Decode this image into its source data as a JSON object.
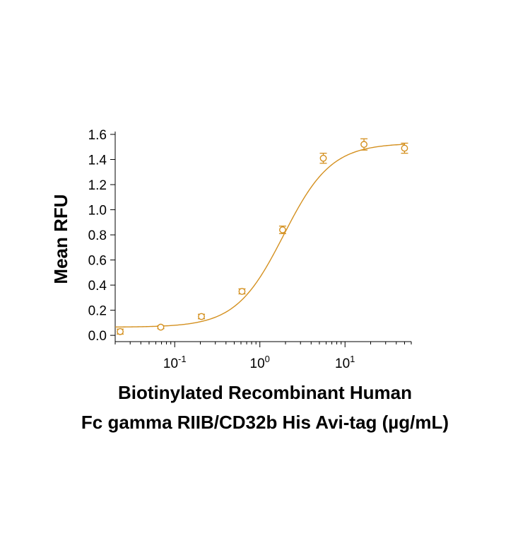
{
  "chart_data": {
    "type": "scatter",
    "title": "",
    "xlabel_line1": "Biotinylated Recombinant Human",
    "xlabel_line2": "Fc gamma RIIB/CD32b His Avi-tag (µg/mL)",
    "ylabel": "Mean RFU",
    "xscale": "log",
    "xlim": [
      0.02,
      60
    ],
    "ylim": [
      -0.05,
      1.6
    ],
    "yticks": [
      0.0,
      0.2,
      0.4,
      0.6,
      0.8,
      1.0,
      1.2,
      1.4,
      1.6
    ],
    "ytick_labels": [
      "0.0",
      "0.2",
      "0.4",
      "0.6",
      "0.8",
      "1.0",
      "1.2",
      "1.4",
      "1.6"
    ],
    "xticks": [
      0.1,
      1,
      10
    ],
    "xtick_labels": [
      {
        "base": "10",
        "exp": "-1"
      },
      {
        "base": "10",
        "exp": "0"
      },
      {
        "base": "10",
        "exp": "1"
      }
    ],
    "grid": false,
    "legend": "none",
    "color": "#D4901F",
    "series": [
      {
        "x": [
          0.0229,
          0.0686,
          0.206,
          0.617,
          1.85,
          5.56,
          16.7,
          50
        ],
        "y": [
          0.03,
          0.065,
          0.15,
          0.35,
          0.84,
          1.41,
          1.52,
          1.49
        ],
        "yerr": [
          0.02,
          0.012,
          0.018,
          0.02,
          0.03,
          0.04,
          0.045,
          0.04
        ]
      }
    ],
    "fit": {
      "model": "4PL",
      "bottom": 0.065,
      "top": 1.53,
      "ec50": 1.9,
      "hill": 1.55
    }
  }
}
